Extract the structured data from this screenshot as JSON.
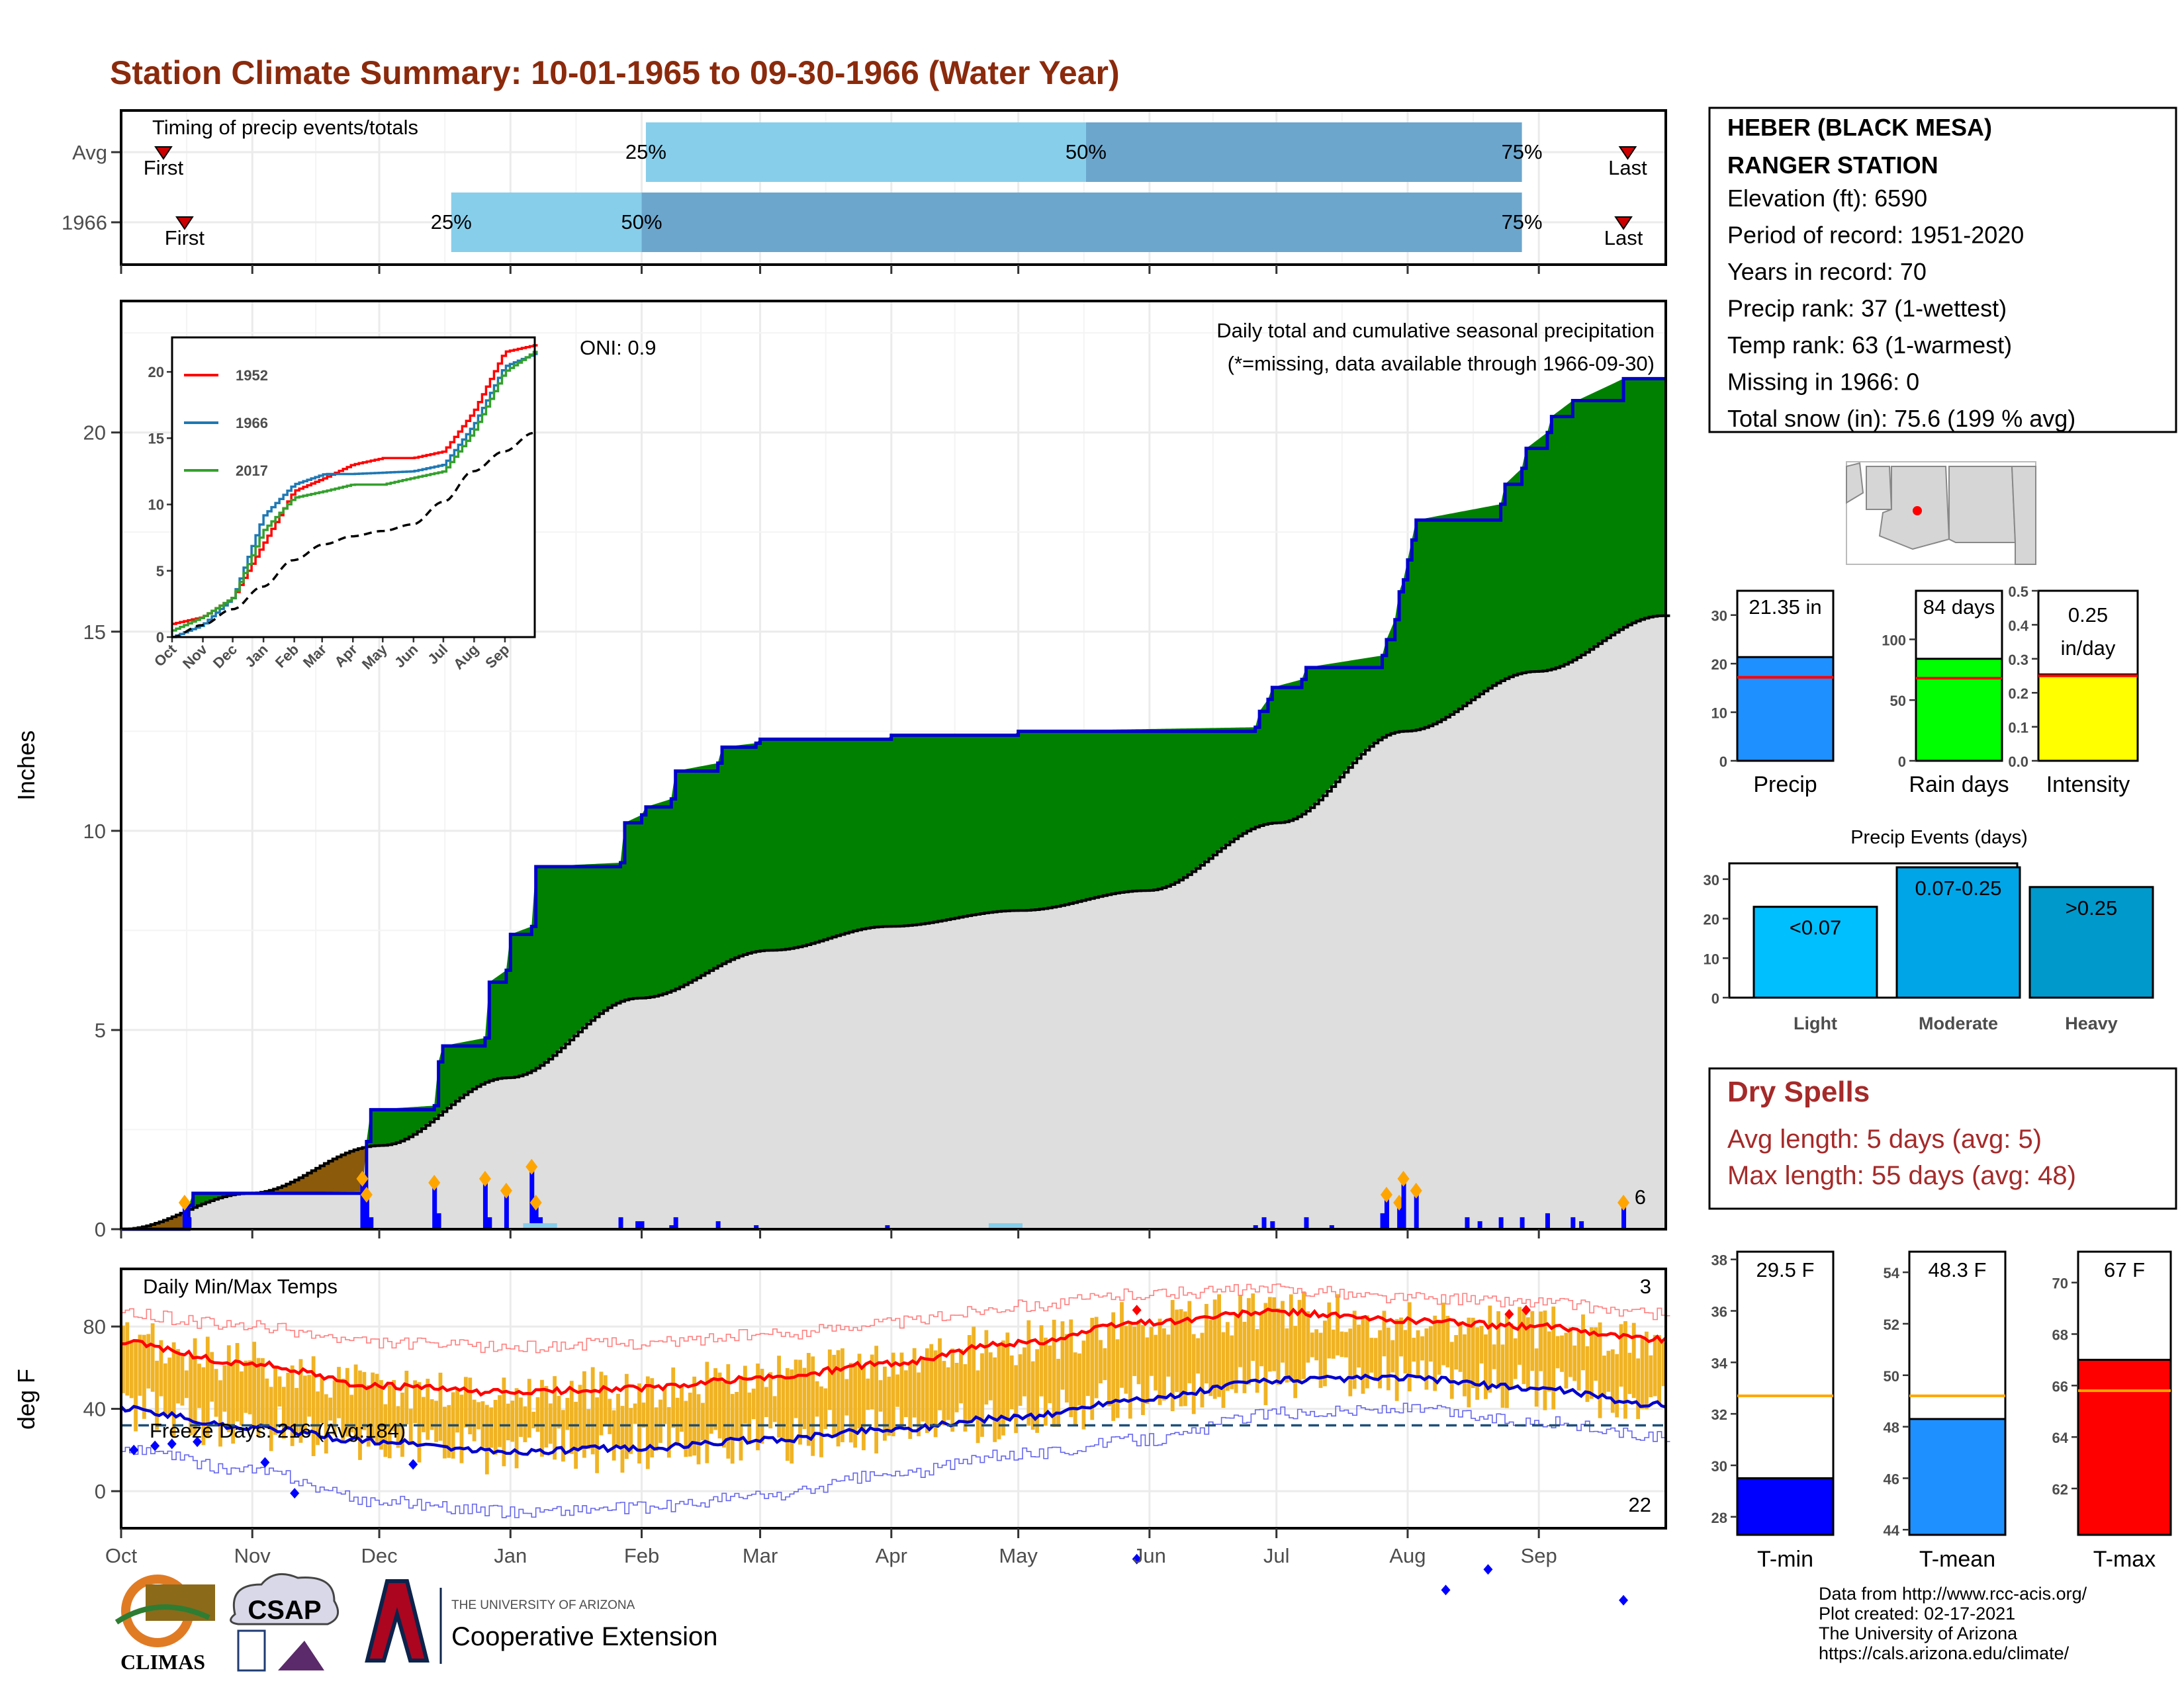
{
  "title": "Station Climate Summary: 10-01-1965 to 09-30-1966 (Water Year)",
  "colors": {
    "title": "#8b2a0c",
    "cum_area": "#008000",
    "cum_line": "#0000cd",
    "avg_area": "#dedede",
    "deficit_area": "#8b5a0a",
    "daily_bar": "#0000ff",
    "temp_bar": "#f0b323",
    "tmax_avg": "#ff0000",
    "tmin_avg": "#0000cd",
    "q1_light": "#87ceeb",
    "q2_dark": "#6ca6cd"
  },
  "timing_panel": {
    "header": "Timing of precip events/totals",
    "rows": [
      {
        "label": "Avg",
        "first_day": 10,
        "p25_day": 124,
        "p50_day": 228,
        "p75_day": 331,
        "last_day": 356,
        "p25": "25%",
        "p50": "50%",
        "p75": "75%",
        "first": "First",
        "last": "Last"
      },
      {
        "label": "1966",
        "first_day": 15,
        "p25_day": 78,
        "p50_day": 123,
        "p75_day": 331,
        "last_day": 355,
        "p25": "25%",
        "p50": "50%",
        "p75": "75%",
        "first": "First",
        "last": "Last"
      }
    ]
  },
  "precip_panel": {
    "ylabel": "Inches",
    "oni": "ONI: 0.9",
    "note1": "Daily total and cumulative seasonal precipitation",
    "note2": "(*=missing, data available through 1966-09-30)",
    "count_label": "6",
    "yticks": [
      "0",
      "5",
      "10",
      "15",
      "20"
    ]
  },
  "inset": {
    "legend": [
      "1952",
      "1966",
      "2017"
    ],
    "legend_colors": [
      "#ff0000",
      "#1f78b4",
      "#33a02c"
    ],
    "yticks": [
      "0",
      "5",
      "10",
      "15",
      "20"
    ],
    "xticks": [
      "Oct",
      "Nov",
      "Dec",
      "Jan",
      "Feb",
      "Mar",
      "Apr",
      "May",
      "Jun",
      "Jul",
      "Aug",
      "Sep"
    ]
  },
  "temp_panel": {
    "ylabel": "deg F",
    "header": "Daily Min/Max Temps",
    "freeze": "Freeze Days: 216 (Avg:184)",
    "hot_count": "3",
    "cold_count": "22",
    "yticks": [
      "0",
      "40",
      "80"
    ]
  },
  "months": [
    "Oct",
    "Nov",
    "Dec",
    "Jan",
    "Feb",
    "Mar",
    "Apr",
    "May",
    "Jun",
    "Jul",
    "Aug",
    "Sep"
  ],
  "info": {
    "name1": "HEBER (BLACK MESA)",
    "name2": "RANGER STATION",
    "lines": [
      "Elevation (ft): 6590",
      "Period of record: 1951-2020",
      "Years in record: 70",
      "Precip rank: 37 (1-wettest)",
      "Temp rank: 63 (1-warmest)",
      "Missing in 1966: 0",
      "Total snow (in): 75.6 (199 % avg)"
    ]
  },
  "summary_bars": [
    {
      "name": "Precip",
      "value_label": "21.35 in",
      "value": 21.35,
      "avg": 17.2,
      "ymax": 35,
      "yticks": [
        "0",
        "10",
        "20",
        "30"
      ],
      "color": "#1e90ff"
    },
    {
      "name": "Rain days",
      "value_label": "84 days",
      "value": 84,
      "avg": 68,
      "ymax": 140,
      "yticks": [
        "0",
        "50",
        "100"
      ],
      "color": "#00ff00"
    },
    {
      "name": "Intensity",
      "value_label1": "0.25",
      "value_label2": "in/day",
      "value": 0.254,
      "avg": 0.25,
      "ymax": 0.5,
      "yticks": [
        "0.0",
        "0.1",
        "0.2",
        "0.3",
        "0.4",
        "0.5"
      ],
      "color": "#ffff00"
    }
  ],
  "events": {
    "title": "Precip Events (days)",
    "yticks": [
      "0",
      "10",
      "20",
      "30"
    ],
    "bars": [
      {
        "name": "Light",
        "label": "<0.07",
        "value": 23,
        "color": "#00bfff"
      },
      {
        "name": "Moderate",
        "label": "0.07-0.25",
        "value": 33,
        "color": "#00a5e8"
      },
      {
        "name": "Heavy",
        "label": ">0.25",
        "value": 28,
        "color": "#0099cc"
      }
    ]
  },
  "dry_spells": {
    "title": "Dry Spells",
    "avg": "Avg length: 5 days (avg: 5)",
    "max": "Max length: 55 days (avg: 48)"
  },
  "temp_bars": [
    {
      "name": "T-min",
      "value_label": "29.5 F",
      "value": 29.5,
      "avg": 32.7,
      "ymin": 27.3,
      "ymax": 38.3,
      "yticks": [
        "28",
        "30",
        "32",
        "34",
        "36",
        "38"
      ],
      "color": "#0000ff"
    },
    {
      "name": "T-mean",
      "value_label": "48.3 F",
      "value": 48.3,
      "avg": 49.2,
      "ymin": 43.8,
      "ymax": 54.8,
      "yticks": [
        "44",
        "46",
        "48",
        "50",
        "52",
        "54"
      ],
      "color": "#1e90ff"
    },
    {
      "name": "T-max",
      "value_label": "67 F",
      "value": 67,
      "avg": 65.8,
      "ymin": 60.2,
      "ymax": 71.2,
      "yticks": [
        "62",
        "64",
        "66",
        "68",
        "70"
      ],
      "color": "#ff0000"
    }
  ],
  "footer": [
    "Data from http://www.rcc-acis.org/",
    "Plot created: 02-17-2021",
    "The University of Arizona",
    "https://cals.arizona.edu/climate/"
  ],
  "logos": {
    "climas": "CLIMAS",
    "csap": "CSAP",
    "ua_top": "THE UNIVERSITY OF ARIZONA",
    "ua_main": "Cooperative Extension"
  },
  "chart_data": [
    {
      "type": "area",
      "title": "Daily total and cumulative seasonal precipitation",
      "ylabel": "Inches",
      "ylim": [
        0,
        23.3
      ],
      "x_label_units": "day of water year (0 = Oct 1)",
      "cumulative_1966": {
        "x": [
          0,
          15,
          16,
          17,
          57,
          58,
          59,
          74,
          75,
          76,
          86,
          87,
          91,
          92,
          97,
          98,
          118,
          119,
          123,
          124,
          130,
          131,
          141,
          142,
          150,
          151,
          181,
          182,
          211,
          212,
          268,
          269,
          271,
          272,
          279,
          280,
          298,
          299,
          301,
          302,
          303,
          304,
          305,
          306,
          326,
          327,
          331,
          332,
          337,
          338,
          343,
          344,
          355,
          356,
          365
        ],
        "y": [
          0,
          0,
          0.6,
          0.9,
          0.95,
          2.2,
          3.0,
          3.1,
          4.2,
          4.6,
          4.8,
          6.2,
          6.5,
          7.4,
          7.6,
          9.1,
          9.2,
          10.2,
          10.4,
          10.6,
          10.8,
          11.5,
          11.7,
          12.1,
          12.2,
          12.3,
          12.3,
          12.4,
          12.4,
          12.5,
          12.6,
          13.0,
          13.3,
          13.6,
          13.8,
          14.1,
          14.4,
          14.8,
          15.3,
          16.0,
          16.3,
          16.8,
          17.3,
          17.8,
          18.2,
          18.7,
          19.1,
          19.6,
          20.0,
          20.4,
          20.8,
          20.8,
          21.35,
          21.35,
          21.35
        ]
      },
      "cumulative_average": {
        "x": [
          0,
          30,
          61,
          91,
          122,
          153,
          181,
          212,
          242,
          273,
          303,
          334,
          364
        ],
        "y": [
          0,
          0.9,
          2.1,
          3.8,
          5.8,
          7.0,
          7.6,
          8.0,
          8.5,
          10.2,
          12.5,
          14.0,
          15.4
        ]
      },
      "daily_precip": {
        "x": [
          15,
          16,
          57,
          58,
          59,
          74,
          75,
          86,
          87,
          91,
          97,
          98,
          99,
          118,
          122,
          123,
          130,
          131,
          141,
          150,
          181,
          211,
          268,
          270,
          272,
          280,
          286,
          298,
          299,
          302,
          303,
          306,
          318,
          321,
          326,
          331,
          337,
          343,
          345,
          355
        ],
        "y": [
          0.6,
          0.3,
          1.2,
          0.8,
          0.3,
          1.1,
          0.4,
          1.2,
          0.3,
          0.9,
          1.5,
          0.6,
          0.3,
          0.3,
          0.2,
          0.2,
          0.1,
          0.3,
          0.2,
          0.1,
          0.1,
          0.1,
          0.1,
          0.3,
          0.2,
          0.3,
          0.1,
          0.4,
          0.8,
          0.6,
          1.2,
          0.9,
          0.3,
          0.2,
          0.3,
          0.3,
          0.4,
          0.3,
          0.2,
          0.6
        ]
      }
    },
    {
      "type": "line",
      "title": "Daily Min/Max Temps",
      "ylabel": "deg F",
      "ylim": [
        -18,
        108
      ],
      "tmax_average": {
        "x": [
          0,
          30,
          61,
          91,
          122,
          153,
          181,
          212,
          242,
          273,
          303,
          334,
          364
        ],
        "y": [
          72,
          62,
          51,
          48,
          50,
          55,
          62,
          72,
          82,
          87,
          83,
          80,
          74
        ]
      },
      "tmin_average": {
        "x": [
          0,
          30,
          61,
          91,
          122,
          153,
          181,
          212,
          242,
          273,
          303,
          334,
          364
        ],
        "y": [
          40,
          31,
          24,
          19,
          21,
          25,
          30,
          36,
          45,
          54,
          55,
          50,
          42
        ]
      },
      "record_high": {
        "x": [
          0,
          30,
          61,
          91,
          122,
          153,
          181,
          212,
          242,
          273,
          303,
          334,
          364
        ],
        "y": [
          86,
          80,
          72,
          70,
          72,
          76,
          82,
          90,
          96,
          98,
          94,
          92,
          86
        ]
      },
      "record_low": {
        "x": [
          0,
          30,
          61,
          91,
          122,
          153,
          181,
          212,
          242,
          273,
          303,
          334,
          364
        ],
        "y": [
          20,
          10,
          -5,
          -10,
          -8,
          -2,
          8,
          18,
          25,
          38,
          40,
          34,
          26
        ]
      },
      "freeze_line": 32
    },
    {
      "type": "line",
      "title": "",
      "series": [
        {
          "name": "1952",
          "x": [
            0,
            30,
            61,
            91,
            122,
            153,
            181,
            212,
            242,
            273,
            303,
            334,
            364
          ],
          "y": [
            1.0,
            1.5,
            3.0,
            7.0,
            11.0,
            12.0,
            13.0,
            13.5,
            13.5,
            14.0,
            17.0,
            21.5,
            22.0
          ]
        },
        {
          "name": "1966",
          "x": [
            0,
            30,
            61,
            91,
            122,
            153,
            181,
            212,
            242,
            273,
            303,
            334,
            364
          ],
          "y": [
            0.0,
            0.9,
            3.0,
            9.1,
            11.5,
            12.3,
            12.3,
            12.4,
            12.5,
            13.0,
            16.0,
            20.4,
            21.35
          ]
        },
        {
          "name": "2017",
          "x": [
            0,
            30,
            61,
            91,
            122,
            153,
            181,
            212,
            242,
            273,
            303,
            334,
            364
          ],
          "y": [
            0.5,
            1.5,
            3.0,
            8.0,
            10.5,
            11.0,
            11.5,
            11.5,
            12.0,
            12.5,
            15.5,
            20.0,
            21.5
          ]
        },
        {
          "x": [
            0,
            30,
            61,
            91,
            122,
            153,
            181,
            212,
            242,
            273,
            303,
            334,
            364
          ],
          "y": [
            0,
            0.9,
            2.1,
            3.8,
            5.8,
            7.0,
            7.6,
            8.0,
            8.5,
            10.2,
            12.5,
            14.0,
            15.4
          ]
        }
      ],
      "ylim": [
        0,
        22
      ]
    }
  ]
}
